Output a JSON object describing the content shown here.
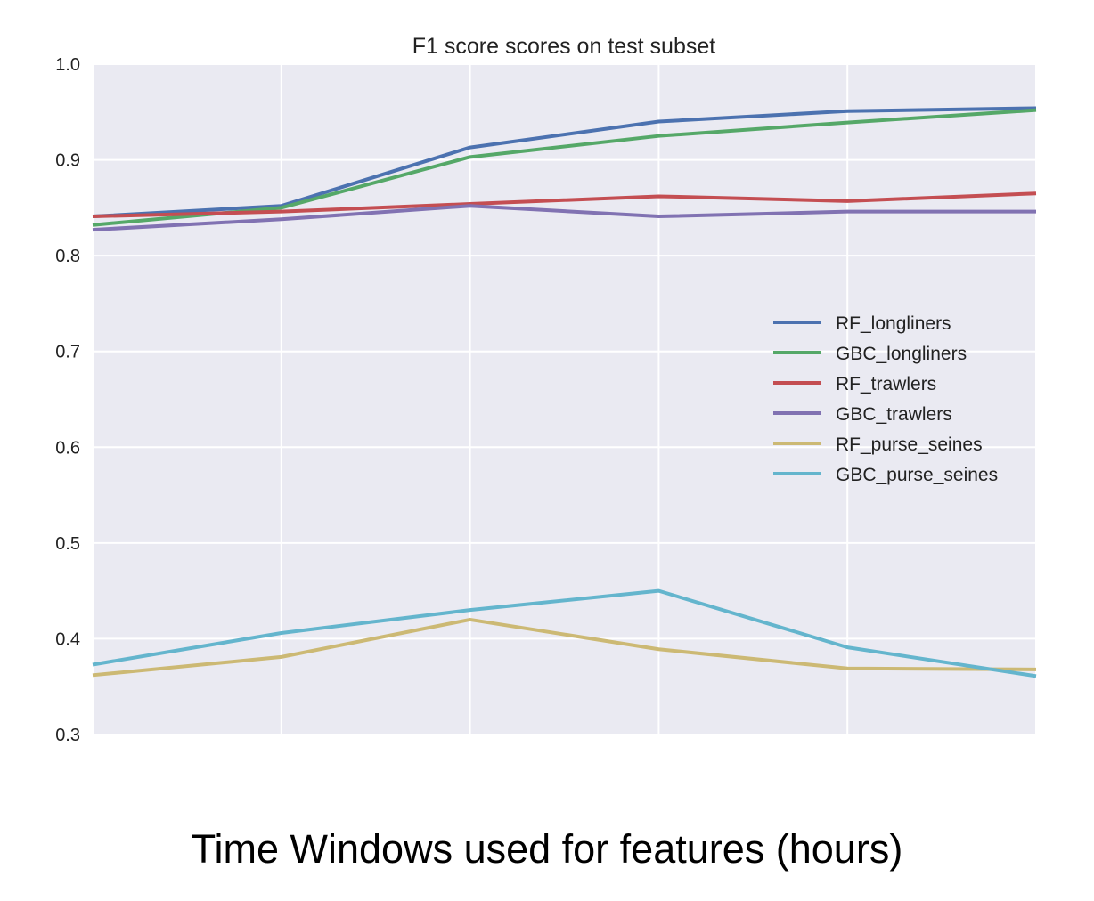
{
  "chart_data": {
    "type": "line",
    "title": "F1 score scores on test subset",
    "xlabel": "Time Windows used for features (hours)",
    "ylabel": "",
    "x": [
      0,
      1,
      2,
      3,
      4,
      5
    ],
    "xlim": [
      0,
      5
    ],
    "ylim": [
      0.3,
      1.0
    ],
    "yticks": [
      "1.0",
      "0.9",
      "0.8",
      "0.7",
      "0.6",
      "0.5",
      "0.4",
      "0.3"
    ],
    "ytick_values": [
      1.0,
      0.9,
      0.8,
      0.7,
      0.6,
      0.5,
      0.4,
      0.3
    ],
    "grid": true,
    "legend_position": "center-right",
    "series": [
      {
        "name": "RF_longliners",
        "color": "#4c72b0",
        "values": [
          0.841,
          0.852,
          0.913,
          0.94,
          0.951,
          0.954
        ]
      },
      {
        "name": "GBC_longliners",
        "color": "#55a868",
        "values": [
          0.832,
          0.85,
          0.903,
          0.925,
          0.939,
          0.952
        ]
      },
      {
        "name": "RF_trawlers",
        "color": "#c44e52",
        "values": [
          0.841,
          0.846,
          0.854,
          0.862,
          0.857,
          0.865
        ]
      },
      {
        "name": "GBC_trawlers",
        "color": "#8172b2",
        "values": [
          0.827,
          0.838,
          0.852,
          0.841,
          0.846,
          0.846
        ]
      },
      {
        "name": "RF_purse_seines",
        "color": "#ccb974",
        "values": [
          0.362,
          0.381,
          0.42,
          0.389,
          0.369,
          0.368
        ]
      },
      {
        "name": "GBC_purse_seines",
        "color": "#64b5cd",
        "values": [
          0.373,
          0.406,
          0.43,
          0.45,
          0.391,
          0.361
        ]
      }
    ]
  }
}
